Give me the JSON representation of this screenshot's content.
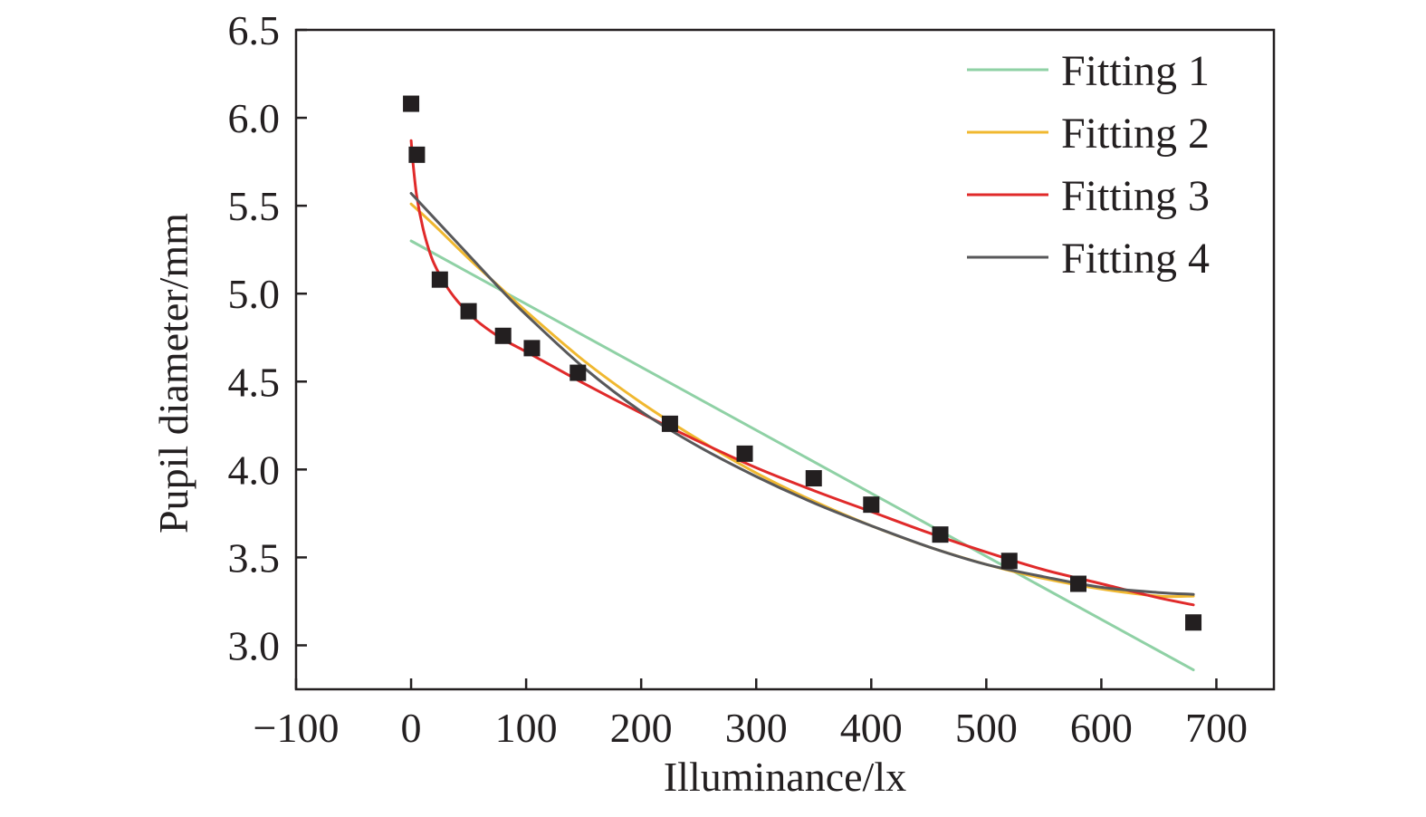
{
  "chart_data": {
    "type": "scatter",
    "xlabel": "Illuminance/lx",
    "ylabel": "Pupil diameter/mm",
    "xlim": [
      -100,
      750
    ],
    "ylim": [
      2.75,
      6.5
    ],
    "xticks": [
      -100,
      0,
      100,
      200,
      300,
      400,
      500,
      600,
      700
    ],
    "xtick_labels": [
      "−100",
      "0",
      "100",
      "200",
      "300",
      "400",
      "500",
      "600",
      "700"
    ],
    "yticks": [
      3.0,
      3.5,
      4.0,
      4.5,
      5.0,
      5.5,
      6.0,
      6.5
    ],
    "ytick_labels": [
      "3.0",
      "3.5",
      "4.0",
      "4.5",
      "5.0",
      "5.5",
      "6.0",
      "6.5"
    ],
    "grid": false,
    "legend_position": "top-right",
    "points": {
      "color": "#231f20",
      "x": [
        0,
        5,
        25,
        50,
        80,
        105,
        145,
        225,
        290,
        350,
        400,
        460,
        520,
        580,
        680
      ],
      "y": [
        6.08,
        5.79,
        5.08,
        4.9,
        4.76,
        4.69,
        4.55,
        4.26,
        4.09,
        3.95,
        3.8,
        3.63,
        3.48,
        3.35,
        3.13
      ]
    },
    "series": [
      {
        "name": "Fitting 1",
        "color": "#8fd1a5",
        "x": [
          0,
          680
        ],
        "y": [
          5.3,
          2.86
        ]
      },
      {
        "name": "Fitting 2",
        "color": "#f0b830",
        "x": [
          0,
          20,
          50,
          80,
          100,
          150,
          200,
          250,
          300,
          350,
          400,
          450,
          500,
          550,
          600,
          650,
          680
        ],
        "y": [
          5.51,
          5.39,
          5.2,
          5.02,
          4.9,
          4.62,
          4.38,
          4.17,
          3.98,
          3.82,
          3.68,
          3.56,
          3.46,
          3.38,
          3.32,
          3.28,
          3.28
        ]
      },
      {
        "name": "Fitting 3",
        "color": "#e02a2a",
        "x": [
          0,
          2,
          5,
          10,
          15,
          20,
          30,
          40,
          50,
          60,
          80,
          100,
          150,
          200,
          250,
          300,
          350,
          400,
          450,
          500,
          550,
          600,
          650,
          680
        ],
        "y": [
          5.87,
          5.72,
          5.55,
          5.38,
          5.26,
          5.17,
          5.05,
          4.96,
          4.89,
          4.83,
          4.74,
          4.67,
          4.49,
          4.32,
          4.16,
          4.01,
          3.88,
          3.76,
          3.64,
          3.53,
          3.43,
          3.35,
          3.27,
          3.23
        ]
      },
      {
        "name": "Fitting 4",
        "color": "#58585a",
        "x": [
          0,
          20,
          50,
          80,
          100,
          150,
          200,
          250,
          300,
          350,
          400,
          450,
          500,
          550,
          600,
          650,
          680
        ],
        "y": [
          5.57,
          5.43,
          5.22,
          5.01,
          4.88,
          4.58,
          4.33,
          4.13,
          3.96,
          3.81,
          3.68,
          3.56,
          3.46,
          3.39,
          3.33,
          3.3,
          3.29
        ]
      }
    ]
  }
}
